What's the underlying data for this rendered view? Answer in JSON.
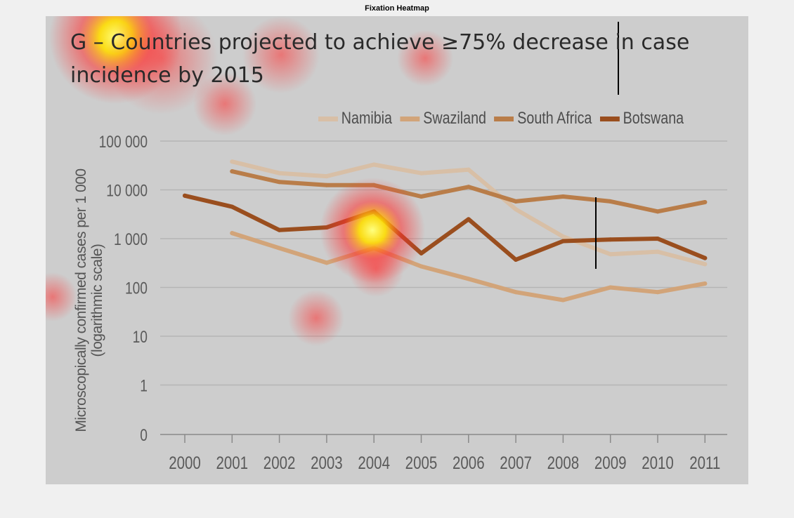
{
  "figure": {
    "title": "Fixation Heatmap"
  },
  "heatmap_colors": [
    "#ffff80",
    "#ffdd00",
    "#ff3030"
  ],
  "chart_data": {
    "type": "line",
    "title": "G – Countries projected to achieve ≥75% decrease in case incidence by 2015",
    "ylabel_lines": [
      "Microscopically confirmed cases per 1 000",
      "(logarithmic scale)"
    ],
    "xlabel": "",
    "yscale": "log",
    "x": [
      2000,
      2001,
      2002,
      2003,
      2004,
      2005,
      2006,
      2007,
      2008,
      2009,
      2010,
      2011
    ],
    "x_tick_labels": [
      "2000",
      "2001",
      "2002",
      "2003",
      "2004",
      "2005",
      "2006",
      "2007",
      "2008",
      "2009",
      "2010",
      "2011"
    ],
    "y_ticks": [
      0,
      1,
      10,
      100,
      1000,
      10000,
      100000
    ],
    "y_tick_labels": [
      "0",
      "1",
      "10",
      "100",
      "1 000",
      "10 000",
      "100 000"
    ],
    "grid": true,
    "legend_position": "top-right",
    "series": [
      {
        "name": "Namibia",
        "color": "#d8bfa6",
        "values": [
          null,
          38000,
          22000,
          19000,
          33000,
          22000,
          26000,
          4000,
          1100,
          480,
          540,
          300
        ]
      },
      {
        "name": "Swaziland",
        "color": "#d2a479",
        "values": [
          null,
          1300,
          640,
          320,
          640,
          270,
          150,
          80,
          55,
          100,
          80,
          120
        ]
      },
      {
        "name": "South Africa",
        "color": "#b97d49",
        "values": [
          null,
          24000,
          14500,
          12500,
          12500,
          7300,
          11500,
          5800,
          7300,
          5800,
          3600,
          5600
        ]
      },
      {
        "name": "Botswana",
        "color": "#9a4e1e",
        "values": [
          7600,
          4500,
          1500,
          1700,
          3600,
          500,
          2500,
          370,
          890,
          960,
          1000,
          400
        ]
      }
    ]
  }
}
